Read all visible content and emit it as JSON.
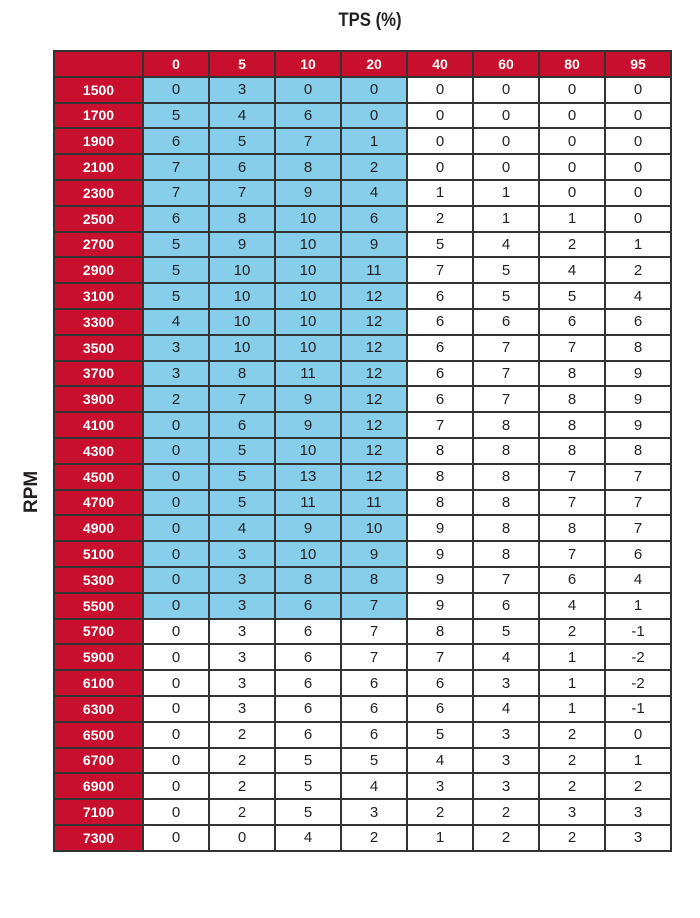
{
  "chart_data": {
    "type": "table",
    "title": "TPS (%)",
    "xlabel": "TPS (%)",
    "ylabel": "RPM",
    "columns": [
      "0",
      "5",
      "10",
      "20",
      "40",
      "60",
      "80",
      "95"
    ],
    "highlight_color": "#87ceeb",
    "header_color": "#c8102e",
    "highlight_region": {
      "rows": "1500-5500",
      "columns": [
        "0",
        "5",
        "10",
        "20"
      ]
    },
    "rows": [
      {
        "rpm": "1500",
        "values": [
          0,
          3,
          0,
          0,
          0,
          0,
          0,
          0
        ]
      },
      {
        "rpm": "1700",
        "values": [
          5,
          4,
          6,
          0,
          0,
          0,
          0,
          0
        ]
      },
      {
        "rpm": "1900",
        "values": [
          6,
          5,
          7,
          1,
          0,
          0,
          0,
          0
        ]
      },
      {
        "rpm": "2100",
        "values": [
          7,
          6,
          8,
          2,
          0,
          0,
          0,
          0
        ]
      },
      {
        "rpm": "2300",
        "values": [
          7,
          7,
          9,
          4,
          1,
          1,
          0,
          0
        ]
      },
      {
        "rpm": "2500",
        "values": [
          6,
          8,
          10,
          6,
          2,
          1,
          1,
          0
        ]
      },
      {
        "rpm": "2700",
        "values": [
          5,
          9,
          10,
          9,
          5,
          4,
          2,
          1
        ]
      },
      {
        "rpm": "2900",
        "values": [
          5,
          10,
          10,
          11,
          7,
          5,
          4,
          2
        ]
      },
      {
        "rpm": "3100",
        "values": [
          5,
          10,
          10,
          12,
          6,
          5,
          5,
          4
        ]
      },
      {
        "rpm": "3300",
        "values": [
          4,
          10,
          10,
          12,
          6,
          6,
          6,
          6
        ]
      },
      {
        "rpm": "3500",
        "values": [
          3,
          10,
          10,
          12,
          6,
          7,
          7,
          8
        ]
      },
      {
        "rpm": "3700",
        "values": [
          3,
          8,
          11,
          12,
          6,
          7,
          8,
          9
        ]
      },
      {
        "rpm": "3900",
        "values": [
          2,
          7,
          9,
          12,
          6,
          7,
          8,
          9
        ]
      },
      {
        "rpm": "4100",
        "values": [
          0,
          6,
          9,
          12,
          7,
          8,
          8,
          9
        ]
      },
      {
        "rpm": "4300",
        "values": [
          0,
          5,
          10,
          12,
          8,
          8,
          8,
          8
        ]
      },
      {
        "rpm": "4500",
        "values": [
          0,
          5,
          13,
          12,
          8,
          8,
          7,
          7
        ]
      },
      {
        "rpm": "4700",
        "values": [
          0,
          5,
          11,
          11,
          8,
          8,
          7,
          7
        ]
      },
      {
        "rpm": "4900",
        "values": [
          0,
          4,
          9,
          10,
          9,
          8,
          8,
          7
        ]
      },
      {
        "rpm": "5100",
        "values": [
          0,
          3,
          10,
          9,
          9,
          8,
          7,
          6
        ]
      },
      {
        "rpm": "5300",
        "values": [
          0,
          3,
          8,
          8,
          9,
          7,
          6,
          4
        ]
      },
      {
        "rpm": "5500",
        "values": [
          0,
          3,
          6,
          7,
          9,
          6,
          4,
          1
        ]
      },
      {
        "rpm": "5700",
        "values": [
          0,
          3,
          6,
          7,
          8,
          5,
          2,
          -1
        ]
      },
      {
        "rpm": "5900",
        "values": [
          0,
          3,
          6,
          7,
          7,
          4,
          1,
          -2
        ]
      },
      {
        "rpm": "6100",
        "values": [
          0,
          3,
          6,
          6,
          6,
          3,
          1,
          -2
        ]
      },
      {
        "rpm": "6300",
        "values": [
          0,
          3,
          6,
          6,
          6,
          4,
          1,
          -1
        ]
      },
      {
        "rpm": "6500",
        "values": [
          0,
          2,
          6,
          6,
          5,
          3,
          2,
          0
        ]
      },
      {
        "rpm": "6700",
        "values": [
          0,
          2,
          5,
          5,
          4,
          3,
          2,
          1
        ]
      },
      {
        "rpm": "6900",
        "values": [
          0,
          2,
          5,
          4,
          3,
          3,
          2,
          2
        ]
      },
      {
        "rpm": "7100",
        "values": [
          0,
          2,
          5,
          3,
          2,
          2,
          3,
          3
        ]
      },
      {
        "rpm": "7300",
        "values": [
          0,
          0,
          4,
          2,
          1,
          2,
          2,
          3
        ]
      }
    ]
  }
}
